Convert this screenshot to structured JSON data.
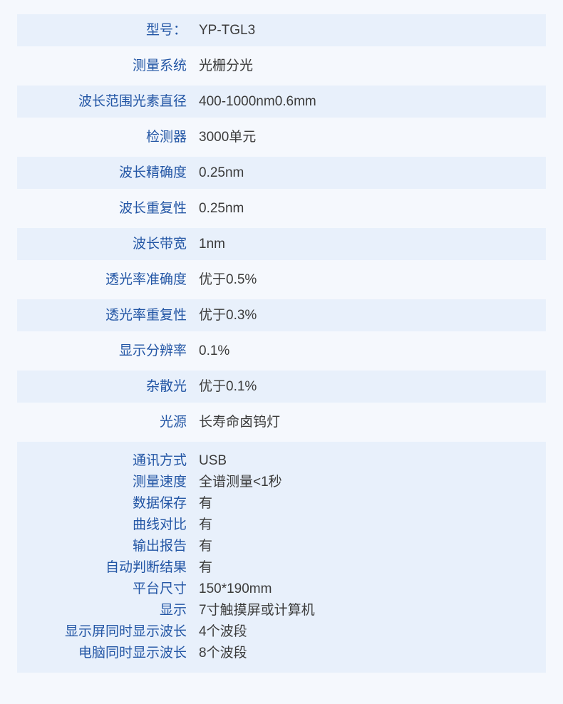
{
  "colors": {
    "page_background": "#f5f8fd",
    "shaded_row_background": "#e8f0fb",
    "label_text": "#2356a5",
    "value_text": "#3b3b3b"
  },
  "spec_table": {
    "rows": [
      {
        "label": "型号：",
        "value": "YP-TGL3"
      },
      {
        "label": "测量系统",
        "value": "光栅分光"
      },
      {
        "label": "波长范围光素直径",
        "value": "400-1000nm0.6mm"
      },
      {
        "label": "检测器",
        "value": "3000单元"
      },
      {
        "label": "波长精确度",
        "value": "0.25nm"
      },
      {
        "label": "波长重复性",
        "value": "0.25nm"
      },
      {
        "label": "波长带宽",
        "value": "1nm"
      },
      {
        "label": "透光率准确度",
        "value": "优于0.5%"
      },
      {
        "label": "透光率重复性",
        "value": "优于0.3%"
      },
      {
        "label": "显示分辨率",
        "value": "0.1%"
      },
      {
        "label": "杂散光",
        "value": "优于0.1%"
      },
      {
        "label": "光源",
        "value": "长寿命卤钨灯"
      }
    ],
    "feature_group": [
      {
        "label": "通讯方式",
        "value": "USB"
      },
      {
        "label": "测量速度",
        "value": "全谱测量<1秒"
      },
      {
        "label": "数据保存",
        "value": "有"
      },
      {
        "label": "曲线对比",
        "value": "有"
      },
      {
        "label": "输出报告",
        "value": "有"
      },
      {
        "label": "自动判断结果",
        "value": "有"
      },
      {
        "label": "平台尺寸",
        "value": "150*190mm"
      },
      {
        "label": "显示",
        "value": "7寸触摸屏或计算机"
      },
      {
        "label": "显示屏同时显示波长",
        "value": "4个波段"
      },
      {
        "label": "电脑同时显示波长",
        "value": "8个波段"
      }
    ]
  }
}
